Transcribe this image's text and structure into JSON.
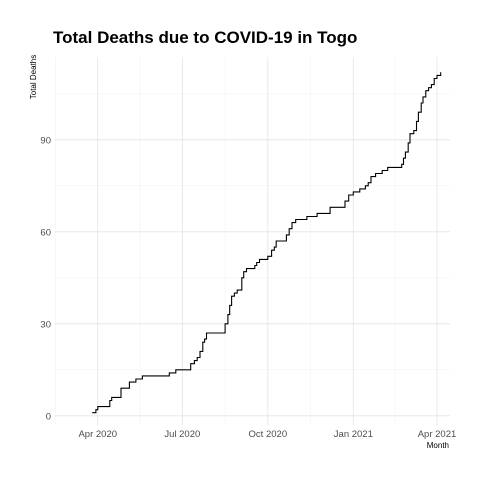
{
  "chart_data": {
    "type": "line",
    "title": "Total Deaths due to COVID-19 in Togo",
    "xlabel": "Month",
    "ylabel": "Total Deaths",
    "x_scale": "date",
    "xlim": [
      "2020-02-15",
      "2021-04-15"
    ],
    "ylim": [
      -3,
      117
    ],
    "x_ticks": [
      {
        "date": "2020-04-01",
        "label": "Apr 2020"
      },
      {
        "date": "2020-07-01",
        "label": "Jul 2020"
      },
      {
        "date": "2020-10-01",
        "label": "Oct 2020"
      },
      {
        "date": "2021-01-01",
        "label": "Jan 2021"
      },
      {
        "date": "2021-04-01",
        "label": "Apr 2021"
      }
    ],
    "y_ticks": [
      0,
      30,
      60,
      90
    ],
    "grid": true,
    "legend": "none",
    "step": true,
    "series": [
      {
        "color": "#000000",
        "points": [
          [
            "2020-03-26",
            1
          ],
          [
            "2020-03-29",
            1
          ],
          [
            "2020-03-30",
            2
          ],
          [
            "2020-04-01",
            3
          ],
          [
            "2020-04-10",
            3
          ],
          [
            "2020-04-14",
            5
          ],
          [
            "2020-04-16",
            6
          ],
          [
            "2020-04-24",
            6
          ],
          [
            "2020-04-26",
            9
          ],
          [
            "2020-05-02",
            9
          ],
          [
            "2020-05-05",
            11
          ],
          [
            "2020-05-10",
            11
          ],
          [
            "2020-05-12",
            12
          ],
          [
            "2020-05-17",
            12
          ],
          [
            "2020-05-19",
            13
          ],
          [
            "2020-06-15",
            13
          ],
          [
            "2020-06-17",
            14
          ],
          [
            "2020-06-22",
            14
          ],
          [
            "2020-06-24",
            15
          ],
          [
            "2020-07-07",
            15
          ],
          [
            "2020-07-10",
            17
          ],
          [
            "2020-07-14",
            18
          ],
          [
            "2020-07-17",
            19
          ],
          [
            "2020-07-20",
            21
          ],
          [
            "2020-07-23",
            24
          ],
          [
            "2020-07-25",
            25
          ],
          [
            "2020-07-27",
            27
          ],
          [
            "2020-08-14",
            27
          ],
          [
            "2020-08-16",
            30
          ],
          [
            "2020-08-19",
            33
          ],
          [
            "2020-08-21",
            36
          ],
          [
            "2020-08-23",
            39
          ],
          [
            "2020-08-26",
            40
          ],
          [
            "2020-08-29",
            41
          ],
          [
            "2020-09-01",
            41
          ],
          [
            "2020-09-03",
            45
          ],
          [
            "2020-09-05",
            47
          ],
          [
            "2020-09-08",
            48
          ],
          [
            "2020-09-14",
            48
          ],
          [
            "2020-09-17",
            49
          ],
          [
            "2020-09-19",
            50
          ],
          [
            "2020-09-22",
            51
          ],
          [
            "2020-09-29",
            51
          ],
          [
            "2020-10-01",
            52
          ],
          [
            "2020-10-05",
            54
          ],
          [
            "2020-10-08",
            55
          ],
          [
            "2020-10-10",
            57
          ],
          [
            "2020-10-19",
            57
          ],
          [
            "2020-10-21",
            59
          ],
          [
            "2020-10-24",
            61
          ],
          [
            "2020-10-27",
            63
          ],
          [
            "2020-10-31",
            64
          ],
          [
            "2020-11-10",
            64
          ],
          [
            "2020-11-12",
            65
          ],
          [
            "2020-11-20",
            65
          ],
          [
            "2020-11-23",
            66
          ],
          [
            "2020-12-05",
            66
          ],
          [
            "2020-12-07",
            68
          ],
          [
            "2020-12-20",
            68
          ],
          [
            "2020-12-23",
            70
          ],
          [
            "2020-12-27",
            72
          ],
          [
            "2021-01-01",
            73
          ],
          [
            "2021-01-08",
            74
          ],
          [
            "2021-01-14",
            75
          ],
          [
            "2021-01-17",
            76
          ],
          [
            "2021-01-20",
            78
          ],
          [
            "2021-01-25",
            79
          ],
          [
            "2021-02-01",
            80
          ],
          [
            "2021-02-07",
            81
          ],
          [
            "2021-02-20",
            81
          ],
          [
            "2021-02-22",
            82
          ],
          [
            "2021-02-24",
            84
          ],
          [
            "2021-02-26",
            86
          ],
          [
            "2021-03-01",
            89
          ],
          [
            "2021-03-03",
            92
          ],
          [
            "2021-03-07",
            93
          ],
          [
            "2021-03-10",
            96
          ],
          [
            "2021-03-12",
            99
          ],
          [
            "2021-03-15",
            102
          ],
          [
            "2021-03-17",
            104
          ],
          [
            "2021-03-20",
            106
          ],
          [
            "2021-03-23",
            107
          ],
          [
            "2021-03-26",
            108
          ],
          [
            "2021-03-29",
            110
          ],
          [
            "2021-04-01",
            111
          ],
          [
            "2021-04-03",
            111
          ],
          [
            "2021-04-05",
            112
          ]
        ]
      }
    ]
  }
}
